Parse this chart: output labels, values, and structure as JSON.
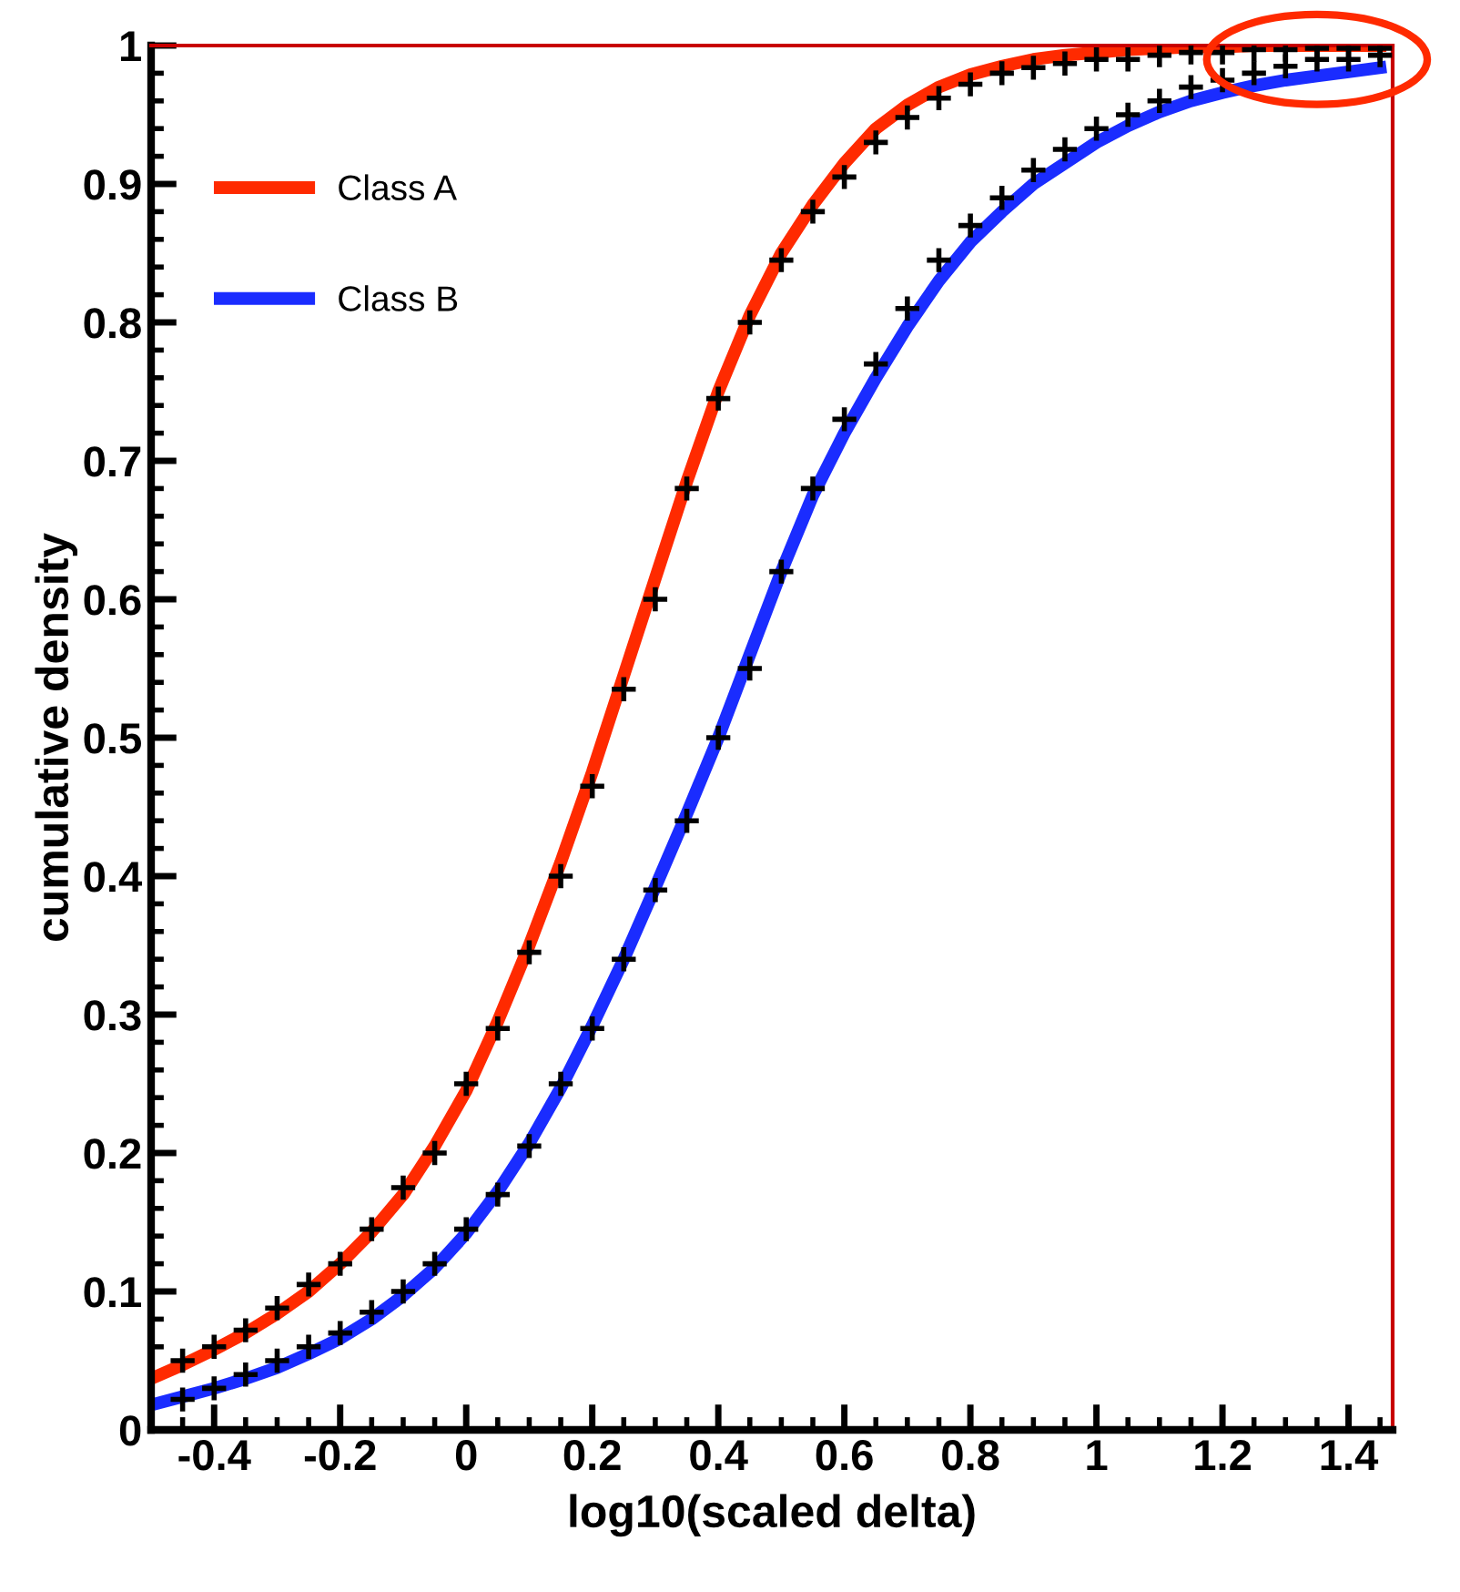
{
  "chart_data": {
    "type": "line",
    "xlabel": "log10(scaled delta)",
    "ylabel": "cumulative density",
    "xlim": [
      -0.5,
      1.47
    ],
    "ylim": [
      0,
      1
    ],
    "xticks": [
      -0.4,
      -0.2,
      0,
      0.2,
      0.4,
      0.6,
      0.8,
      1,
      1.2,
      1.4
    ],
    "yticks": [
      0,
      0.1,
      0.2,
      0.3,
      0.4,
      0.5,
      0.6,
      0.7,
      0.8,
      0.9,
      1
    ],
    "grid": false,
    "legend": "top left",
    "x": [
      -0.5,
      -0.45,
      -0.4,
      -0.35,
      -0.3,
      -0.25,
      -0.2,
      -0.15,
      -0.1,
      -0.05,
      0,
      0.05,
      0.1,
      0.15,
      0.2,
      0.25,
      0.3,
      0.35,
      0.4,
      0.45,
      0.5,
      0.55,
      0.6,
      0.65,
      0.7,
      0.75,
      0.8,
      0.85,
      0.9,
      0.95,
      1.0,
      1.05,
      1.1,
      1.15,
      1.2,
      1.25,
      1.3,
      1.35,
      1.4,
      1.45
    ],
    "series": [
      {
        "name": "Class A",
        "color": "#ff2a00",
        "marker": "none",
        "line_style": "solid",
        "values": [
          0.037,
          0.047,
          0.058,
          0.07,
          0.084,
          0.1,
          0.12,
          0.143,
          0.17,
          0.205,
          0.245,
          0.295,
          0.35,
          0.41,
          0.475,
          0.545,
          0.615,
          0.685,
          0.75,
          0.805,
          0.85,
          0.885,
          0.915,
          0.94,
          0.957,
          0.97,
          0.979,
          0.985,
          0.99,
          0.993,
          0.995,
          0.997,
          0.998,
          0.999,
          0.999,
          1.0,
          1.0,
          1.0,
          1.0,
          1.0
        ]
      },
      {
        "name": "Class B",
        "color": "#1a2cff",
        "marker": "none",
        "line_style": "solid",
        "values": [
          0.018,
          0.024,
          0.03,
          0.037,
          0.045,
          0.055,
          0.066,
          0.08,
          0.097,
          0.117,
          0.142,
          0.172,
          0.207,
          0.247,
          0.292,
          0.34,
          0.392,
          0.445,
          0.5,
          0.56,
          0.62,
          0.675,
          0.72,
          0.76,
          0.797,
          0.83,
          0.858,
          0.88,
          0.9,
          0.915,
          0.93,
          0.942,
          0.952,
          0.96,
          0.966,
          0.971,
          0.975,
          0.978,
          0.981,
          0.984
        ]
      },
      {
        "type": "scatter",
        "color": "#000000",
        "marker": "cross",
        "x": [
          -0.45,
          -0.4,
          -0.35,
          -0.3,
          -0.25,
          -0.2,
          -0.15,
          -0.1,
          -0.05,
          0,
          0.05,
          0.1,
          0.15,
          0.2,
          0.25,
          0.3,
          0.35,
          0.4,
          0.45,
          0.5,
          0.55,
          0.6,
          0.65,
          0.7,
          0.75,
          0.8,
          0.85,
          0.9,
          0.95,
          1.0,
          1.05,
          1.1,
          1.15,
          1.2,
          1.25,
          1.3,
          1.35,
          1.4,
          1.45
        ],
        "values": [
          0.05,
          0.06,
          0.072,
          0.088,
          0.105,
          0.12,
          0.145,
          0.175,
          0.2,
          0.25,
          0.29,
          0.345,
          0.4,
          0.465,
          0.535,
          0.6,
          0.68,
          0.745,
          0.8,
          0.845,
          0.88,
          0.905,
          0.93,
          0.948,
          0.962,
          0.972,
          0.98,
          0.984,
          0.987,
          0.99,
          0.99,
          0.993,
          0.995,
          0.995,
          0.997,
          0.997,
          0.998,
          0.998,
          0.998
        ]
      },
      {
        "type": "scatter",
        "color": "#000000",
        "marker": "cross",
        "x": [
          -0.45,
          -0.4,
          -0.35,
          -0.3,
          -0.25,
          -0.2,
          -0.15,
          -0.1,
          -0.05,
          0,
          0.05,
          0.1,
          0.15,
          0.2,
          0.25,
          0.3,
          0.35,
          0.4,
          0.45,
          0.5,
          0.55,
          0.6,
          0.65,
          0.7,
          0.75,
          0.8,
          0.85,
          0.9,
          0.95,
          1.0,
          1.05,
          1.1,
          1.15,
          1.2,
          1.25,
          1.3,
          1.35,
          1.4,
          1.45
        ],
        "values": [
          0.022,
          0.03,
          0.04,
          0.05,
          0.06,
          0.07,
          0.085,
          0.1,
          0.12,
          0.145,
          0.17,
          0.205,
          0.25,
          0.29,
          0.34,
          0.39,
          0.44,
          0.5,
          0.55,
          0.62,
          0.68,
          0.73,
          0.77,
          0.81,
          0.845,
          0.87,
          0.89,
          0.91,
          0.925,
          0.94,
          0.95,
          0.96,
          0.97,
          0.975,
          0.98,
          0.985,
          0.99,
          0.99,
          0.993
        ]
      }
    ]
  }
}
